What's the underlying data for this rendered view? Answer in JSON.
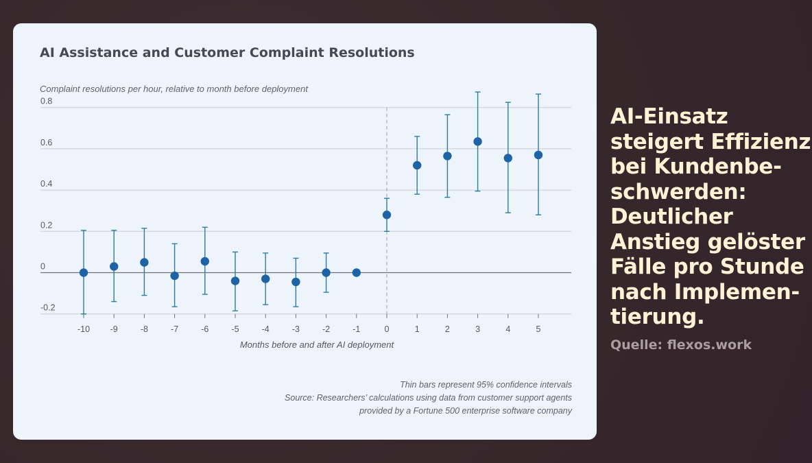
{
  "headline": {
    "lines": [
      "AI-Einsatz",
      "steigert Effizienz",
      "bei Kundenbe-",
      "schwerden:",
      "Deutlicher",
      "Anstieg gelöster",
      "Fälle pro Stunde",
      "nach Implemen-",
      "tierung."
    ]
  },
  "source_label": "Quelle: flexos.work",
  "chart_data": {
    "type": "scatter",
    "title": "AI Assistance and Customer Complaint Resolutions",
    "subtitle": "Complaint resolutions per hour, relative to month before deployment",
    "xlabel": "Months before and after AI deployment",
    "ylabel": "",
    "x": [
      -10,
      -9,
      -8,
      -7,
      -6,
      -5,
      -4,
      -3,
      -2,
      -1,
      0,
      1,
      2,
      3,
      4,
      5
    ],
    "y": [
      0.0,
      0.03,
      0.05,
      -0.015,
      0.055,
      -0.04,
      -0.03,
      -0.045,
      0.0,
      0.0,
      0.28,
      0.52,
      0.565,
      0.635,
      0.555,
      0.57
    ],
    "ci_low": [
      -0.2,
      -0.14,
      -0.11,
      -0.165,
      -0.105,
      -0.185,
      -0.155,
      -0.165,
      -0.095,
      null,
      0.2,
      0.38,
      0.365,
      0.395,
      0.29,
      0.28
    ],
    "ci_high": [
      0.205,
      0.205,
      0.215,
      0.14,
      0.22,
      0.1,
      0.095,
      0.07,
      0.095,
      null,
      0.36,
      0.66,
      0.765,
      0.875,
      0.825,
      0.865
    ],
    "xticks": [
      "-10",
      "-9",
      "-8",
      "-7",
      "-6",
      "-5",
      "-4",
      "-3",
      "-2",
      "-1",
      "0",
      "1",
      "2",
      "3",
      "4",
      "5"
    ],
    "yticks": [
      "0.8",
      "0.6",
      "0.4",
      "0.2",
      "0",
      "-0.2"
    ],
    "ytick_values": [
      0.8,
      0.6,
      0.4,
      0.2,
      0,
      -0.2
    ],
    "xlim": [
      -11,
      6
    ],
    "ylim": [
      -0.2,
      0.8
    ],
    "grid": true,
    "reference_line_x": 0,
    "colors": {
      "points": "#1d63a6",
      "error_bars": "#2e7d9c",
      "grid": "#c9ced4",
      "zero_line": "#6d7378",
      "ref_line": "#9aa0a6"
    },
    "footnotes": [
      "Thin bars represent 95% confidence intervals",
      "Source: Researchers’ calculations using data from customer support agents",
      "provided by a Fortune 500 enterprise software company"
    ]
  }
}
